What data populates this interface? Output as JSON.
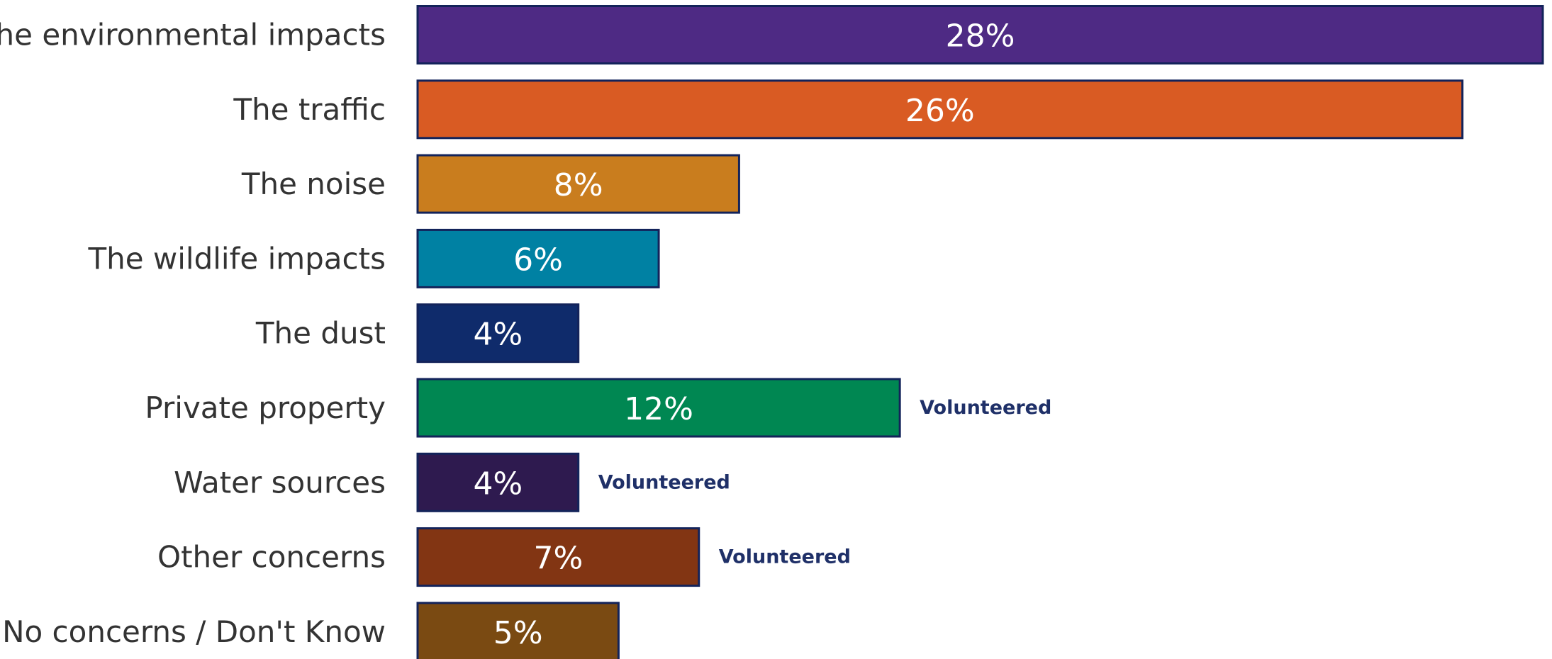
{
  "chart_data": {
    "type": "barh",
    "categories": [
      "The environmental impacts",
      "The traffic",
      "The noise",
      "The wildlife impacts",
      "The dust",
      "Private property",
      "Water sources",
      "Other concerns",
      "No concerns / Don't Know"
    ],
    "values": [
      28,
      26,
      8,
      6,
      4,
      12,
      4,
      7,
      5
    ],
    "value_labels": [
      "28%",
      "26%",
      "8%",
      "6%",
      "4%",
      "12%",
      "4%",
      "7%",
      "5%"
    ],
    "colors": [
      "#4e2a84",
      "#d95b23",
      "#c97d1e",
      "#0081a3",
      "#0f2b6b",
      "#008752",
      "#2e1a4f",
      "#823513",
      "#7a4a12"
    ],
    "annotations": [
      {
        "category": "Private property",
        "text": "Volunteered"
      },
      {
        "category": "Water sources",
        "text": "Volunteered"
      },
      {
        "category": "Other concerns",
        "text": "Volunteered"
      }
    ]
  }
}
